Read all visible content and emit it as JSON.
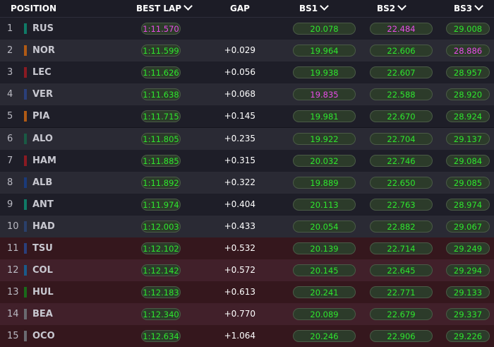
{
  "header": {
    "position": "POSITION",
    "best_lap": "BEST LAP",
    "gap": "GAP",
    "bs1": "BS1",
    "bs2": "BS2",
    "bs3": "BS3"
  },
  "colors": {
    "normal_time": "#2ee62e",
    "best_time": "#e84ce8"
  },
  "rows": [
    {
      "pos": "1",
      "driver": "RUS",
      "team_color": "#0f7a66",
      "best_lap": "1:11.570",
      "gap": "",
      "bs1": "20.078",
      "bs2": "22.484",
      "bs3": "29.008",
      "best_flags": [
        "best_lap",
        "bs2"
      ]
    },
    {
      "pos": "2",
      "driver": "NOR",
      "team_color": "#b05a15",
      "best_lap": "1:11.599",
      "gap": "+0.029",
      "bs1": "19.964",
      "bs2": "22.606",
      "bs3": "28.886",
      "best_flags": [
        "bs3"
      ]
    },
    {
      "pos": "3",
      "driver": "LEC",
      "team_color": "#8a1a22",
      "best_lap": "1:11.626",
      "gap": "+0.056",
      "bs1": "19.938",
      "bs2": "22.607",
      "bs3": "28.957",
      "best_flags": []
    },
    {
      "pos": "4",
      "driver": "VER",
      "team_color": "#2a3f7a",
      "best_lap": "1:11.638",
      "gap": "+0.068",
      "bs1": "19.835",
      "bs2": "22.588",
      "bs3": "28.920",
      "best_flags": [
        "bs1"
      ]
    },
    {
      "pos": "5",
      "driver": "PIA",
      "team_color": "#b05a15",
      "best_lap": "1:11.715",
      "gap": "+0.145",
      "bs1": "19.981",
      "bs2": "22.670",
      "bs3": "28.924",
      "best_flags": []
    },
    {
      "pos": "6",
      "driver": "ALO",
      "team_color": "#1a5a44",
      "best_lap": "1:11.805",
      "gap": "+0.235",
      "bs1": "19.922",
      "bs2": "22.704",
      "bs3": "29.137",
      "best_flags": []
    },
    {
      "pos": "7",
      "driver": "HAM",
      "team_color": "#8a1a22",
      "best_lap": "1:11.885",
      "gap": "+0.315",
      "bs1": "20.032",
      "bs2": "22.746",
      "bs3": "29.084",
      "best_flags": []
    },
    {
      "pos": "8",
      "driver": "ALB",
      "team_color": "#1a3a7a",
      "best_lap": "1:11.892",
      "gap": "+0.322",
      "bs1": "19.889",
      "bs2": "22.650",
      "bs3": "29.085",
      "best_flags": []
    },
    {
      "pos": "9",
      "driver": "ANT",
      "team_color": "#0f7a66",
      "best_lap": "1:11.974",
      "gap": "+0.404",
      "bs1": "20.113",
      "bs2": "22.763",
      "bs3": "28.974",
      "best_flags": []
    },
    {
      "pos": "10",
      "driver": "HAD",
      "team_color": "#2a3f6a",
      "best_lap": "1:12.003",
      "gap": "+0.433",
      "bs1": "20.054",
      "bs2": "22.882",
      "bs3": "29.067",
      "best_flags": []
    },
    {
      "pos": "11",
      "driver": "TSU",
      "team_color": "#2a3f7a",
      "best_lap": "1:12.102",
      "gap": "+0.532",
      "bs1": "20.139",
      "bs2": "22.714",
      "bs3": "29.249",
      "best_flags": []
    },
    {
      "pos": "12",
      "driver": "COL",
      "team_color": "#1a5a8a",
      "best_lap": "1:12.142",
      "gap": "+0.572",
      "bs1": "20.145",
      "bs2": "22.645",
      "bs3": "29.294",
      "best_flags": []
    },
    {
      "pos": "13",
      "driver": "HUL",
      "team_color": "#1a6a1a",
      "best_lap": "1:12.183",
      "gap": "+0.613",
      "bs1": "20.241",
      "bs2": "22.771",
      "bs3": "29.133",
      "best_flags": []
    },
    {
      "pos": "14",
      "driver": "BEA",
      "team_color": "#6a6a70",
      "best_lap": "1:12.340",
      "gap": "+0.770",
      "bs1": "20.089",
      "bs2": "22.679",
      "bs3": "29.337",
      "best_flags": []
    },
    {
      "pos": "15",
      "driver": "OCO",
      "team_color": "#6a6a70",
      "best_lap": "1:12.634",
      "gap": "+1.064",
      "bs1": "20.246",
      "bs2": "22.906",
      "bs3": "29.226",
      "best_flags": []
    }
  ]
}
